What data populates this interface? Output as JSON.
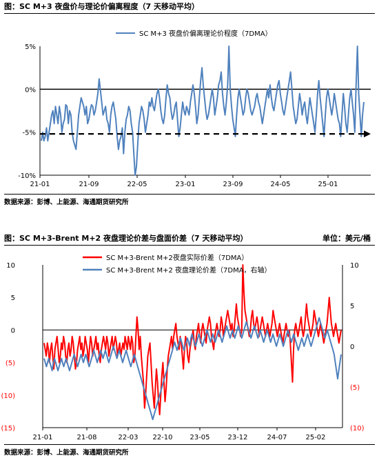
{
  "chart_data": [
    {
      "type": "line",
      "title": "图：SC M+3 夜盘价与理论价偏离程度（7 天移动平均）",
      "source": "数据来源：彭博、上能源、海通期货研究所",
      "legend": [
        "SC M+3 夜盘价偏离理论价程度（7DMA）"
      ],
      "y_ticks": [
        "5%",
        "0%",
        "-5%",
        "-10%"
      ],
      "x_ticks": [
        "21-01",
        "21-09",
        "22-05",
        "23-01",
        "23-09",
        "24-05",
        "25-01"
      ],
      "ylim": [
        -10,
        5
      ],
      "threshold": -5.2,
      "series": [
        {
          "name": "SC M+3 夜盘价偏离理论价程度（7DMA）",
          "color": "#4f81bd",
          "values": [
            -6,
            -5,
            -6,
            -5.5,
            -4.5,
            -6,
            -5,
            -4,
            -3,
            -2.5,
            -4,
            -2,
            -3,
            -4,
            -2,
            -3,
            -5,
            -4,
            -3.5,
            -1.8,
            -2,
            -4,
            -2.5,
            -3,
            -5,
            -6,
            -6.5,
            -7,
            -5,
            -3,
            -2,
            -1,
            -1.5,
            -2,
            -3,
            -2,
            -4,
            -3.5,
            -2.5,
            -1.8,
            -2,
            -3,
            -2.5,
            -1.5,
            -0.5,
            1.2,
            -0.2,
            -1.5,
            -3,
            -2.5,
            -2,
            -3.5,
            -4,
            -5,
            -3,
            -2,
            -1.5,
            -2.5,
            -3.5,
            -5.5,
            -7,
            -6,
            -5.5,
            -4.5,
            -7.5,
            -5,
            -3.5,
            -3,
            -2,
            -2.5,
            -4,
            -5,
            -7.5,
            -10,
            -9,
            -6.5,
            -4,
            -3,
            -2,
            -2.5,
            -3.5,
            -5,
            -4,
            -3,
            -1.5,
            -2,
            -1,
            -2,
            -2.5,
            -1.5,
            -0.5,
            0,
            -1,
            -2.5,
            -3.5,
            -4,
            -3,
            -1,
            0.5,
            -0.5,
            -1,
            -2.5,
            -3.5,
            -3,
            -2,
            -1.5,
            -3.5,
            -5.5,
            -4.5,
            -3,
            -1.5,
            -2.5,
            -3,
            -2,
            -2.5,
            -3,
            -1.5,
            -0.5,
            0.5,
            -0.5,
            -2,
            -4,
            -3,
            -1,
            1,
            2.5,
            0.5,
            -1,
            -2.5,
            -3.5,
            -3,
            -2,
            -1,
            0,
            -1,
            -3,
            -2,
            -1,
            0.5,
            1,
            2,
            -0.5,
            -2,
            -3,
            -1.5,
            0.5,
            5,
            0,
            -2,
            -3.5,
            -4.5,
            -5.5,
            -3,
            -1,
            0,
            -1,
            -2,
            -3,
            -2.5,
            -1,
            0,
            -0.5,
            -1.5,
            -2.5,
            -3,
            -2.5,
            -2,
            -1,
            -0.5,
            -1.5,
            -2,
            -3,
            -4,
            -3,
            -2,
            -1,
            0,
            -1,
            0.5,
            -1,
            -2,
            -2.5,
            -1.5,
            -0.5,
            0.5,
            1,
            -0.5,
            -1.5,
            -2.5,
            -3,
            -2,
            -1,
            0,
            1,
            2,
            0,
            -2,
            -3,
            -4,
            -3.5,
            -2,
            -0.5,
            -1.5,
            -3,
            -2,
            -1.5,
            -3,
            -4,
            -2.5,
            -1,
            -2,
            -3,
            -4,
            -5,
            -3,
            -0.5,
            1,
            -1,
            -2.5,
            -4,
            -5.5,
            -3,
            -1,
            0,
            -1,
            -2,
            -3,
            -2,
            -0.5,
            -1.5,
            -2.5,
            -3.5,
            -4,
            -5.5,
            -3,
            -0.5,
            -2,
            -4,
            -5,
            -3,
            -1,
            0,
            -1.5,
            -3,
            -5,
            0.5,
            5,
            -0.5,
            -3,
            -5.5,
            -3,
            -1.5
          ]
        }
      ]
    },
    {
      "type": "line",
      "title": "图：SC M+3-Brent M+2 夜盘理论价差与盘面价差（7 天移动平均）",
      "unit": "单位：美元/桶",
      "source": "数据来源：彭博、上能源、海通期货研究所",
      "left_ticks": [
        "10",
        "5",
        "0",
        "(5)",
        "(10)",
        "(15)"
      ],
      "right_ticks": [
        "10",
        "5",
        "0",
        "(5)",
        "(10)"
      ],
      "x_ticks": [
        "21-01",
        "21-08",
        "22-03",
        "22-10",
        "23-05",
        "23-12",
        "24-07",
        "25-02"
      ],
      "ylim_left": [
        -15,
        10
      ],
      "ylim_right": [
        -10,
        10
      ],
      "series": [
        {
          "name": "SC M+3-Brent M+2夜盘实际价差（7DMA）",
          "axis": "left",
          "color": "#ff0000",
          "values": [
            -2,
            -3,
            -4,
            -2,
            -3,
            -5,
            -3,
            -2,
            -4,
            -6,
            -3,
            -2,
            -1,
            -3,
            -5,
            -4,
            -2,
            -3,
            -1,
            -2,
            -4,
            -5,
            -3,
            -2,
            -4,
            -3,
            -1,
            -2,
            -4,
            -6,
            -5,
            -3,
            -2,
            -1,
            -3,
            -2,
            -4,
            -3,
            -1,
            -2,
            -3,
            -5,
            -3,
            -1,
            -2,
            -4,
            -3,
            -2,
            -1,
            -3,
            -2,
            -4,
            -5,
            -3,
            -2,
            -1,
            -2,
            -3,
            -1,
            -2,
            -4,
            -3,
            -2,
            -1,
            -3,
            -2,
            -1,
            -2,
            -4,
            -3,
            -2,
            -4,
            -3,
            -2,
            -3,
            -1,
            -2,
            -3,
            -1,
            -2,
            -3,
            -1,
            -2,
            -5,
            -4,
            -1,
            2,
            0,
            -3,
            -1,
            -4,
            -6,
            -8,
            -12,
            -10,
            -7,
            -4,
            -3,
            -2,
            -5,
            -8,
            -10,
            -12,
            -9,
            -6,
            -8,
            -11,
            -13,
            -10,
            -7,
            -5,
            -8,
            -11,
            -9,
            -6,
            -4,
            -3,
            -2,
            -1,
            -3,
            -1,
            0,
            1,
            -1,
            -2,
            -3,
            -1,
            -2,
            -4,
            -6,
            -3,
            -1,
            -2,
            -4,
            -5,
            -3,
            -2,
            -1,
            0,
            -2,
            -3,
            -1,
            0,
            1,
            -1,
            -2,
            0,
            1,
            0,
            -1,
            -2,
            0,
            1,
            2,
            1,
            -1,
            -2,
            -3,
            -1,
            0,
            1,
            0,
            -1,
            0,
            2,
            1,
            -1,
            0,
            1,
            2,
            3,
            2,
            1,
            0,
            1,
            -1,
            0,
            2,
            4,
            2,
            1,
            0,
            -1,
            0,
            10,
            6,
            3,
            2,
            1,
            0,
            -1,
            0,
            2,
            3,
            1,
            0,
            1,
            2,
            1,
            -1,
            0,
            1,
            2,
            1,
            0,
            -1,
            0,
            1,
            0,
            -1,
            0,
            1,
            3,
            2,
            1,
            0,
            -1,
            0,
            1,
            0,
            -1,
            -2,
            -1,
            0,
            1,
            0,
            -1,
            0,
            -2,
            -5,
            -8,
            -3,
            0,
            1,
            0,
            -1,
            0,
            1,
            2,
            0,
            -1,
            0,
            2,
            4,
            2,
            1,
            0,
            -1,
            0,
            1,
            3,
            2,
            1,
            0,
            -1,
            0,
            1,
            0,
            -1,
            -2,
            -1,
            0,
            1,
            3,
            5,
            3,
            1,
            0,
            -1,
            0,
            1,
            0,
            -1,
            -2,
            -1,
            0
          ]
        },
        {
          "name": "SC M+3-Brent M+2 夜盘理论价差（7DMA，右轴）",
          "axis": "right",
          "color": "#4f81bd",
          "values": [
            -1.5,
            -2,
            -2.5,
            -2,
            -1.5,
            -2,
            -2.5,
            -3,
            -2,
            -1.5,
            -2,
            -2.5,
            -3,
            -2.5,
            -2,
            -1.5,
            -2,
            -2.5,
            -2,
            -1.5,
            -2,
            -2.5,
            -3,
            -2.5,
            -2,
            -1.5,
            -1,
            -1.5,
            -2,
            -2.5,
            -2,
            -1.5,
            -1,
            -1.5,
            -2,
            -1.5,
            -1,
            -1.5,
            -2,
            -2.5,
            -2,
            -1.5,
            -1,
            -0.5,
            -1,
            -1.5,
            -2,
            -1.5,
            -1,
            -0.5,
            -1,
            -1.5,
            -1,
            -0.5,
            -1,
            -1.5,
            -2,
            -1.5,
            -1,
            -0.5,
            0,
            -0.5,
            -1,
            -1.5,
            -1,
            -0.5,
            -1,
            -1.5,
            -2,
            -1.5,
            -1,
            -0.5,
            -1,
            -1.5,
            -2,
            -2.5,
            -2,
            -1.5,
            -1,
            -1.5,
            -2,
            -2.5,
            -3,
            -3.5,
            -4,
            -4.5,
            -5,
            -5.5,
            -6,
            -6.5,
            -7,
            -7.5,
            -8,
            -8.5,
            -9,
            -8.5,
            -8,
            -7.5,
            -7,
            -6.5,
            -6,
            -5.5,
            -5,
            -4.5,
            -4,
            -3.5,
            -3,
            -2.5,
            -2,
            -1.5,
            -1,
            -0.5,
            0,
            0.5,
            0,
            -0.5,
            0,
            0.5,
            1,
            0.5,
            0,
            -0.5,
            0,
            0.5,
            1,
            0.5,
            0,
            1,
            1.5,
            1,
            0.5,
            0,
            0.5,
            1,
            1.5,
            1,
            0.5,
            0,
            0.5,
            1,
            1.5,
            2,
            1.5,
            1,
            0.5,
            1,
            1.5,
            1,
            0.5,
            1,
            1.5,
            2,
            1.5,
            1,
            0.5,
            1,
            1.5,
            2,
            2.5,
            2,
            1.5,
            1,
            1.5,
            2,
            1.5,
            1,
            1.5,
            2,
            2.5,
            2,
            1.5,
            1,
            1.5,
            2,
            2.5,
            3,
            2.5,
            2,
            1.5,
            1,
            1.5,
            2,
            2.5,
            2,
            1.5,
            1,
            1.5,
            2,
            1.5,
            1,
            0.5,
            1,
            1.5,
            2,
            1.5,
            1,
            0.5,
            1,
            1.5,
            1,
            0.5,
            0,
            0.5,
            1,
            1.5,
            1,
            0.5,
            0,
            0.5,
            1,
            1.5,
            2,
            1.5,
            1,
            0.5,
            1,
            1.5,
            1,
            0.5,
            0,
            -0.5,
            0,
            0.5,
            1,
            0.5,
            0,
            0.5,
            1,
            1.5,
            1,
            0.5,
            0,
            0.5,
            1,
            1.5,
            2,
            2.5,
            3,
            3.5,
            3,
            2.5,
            2,
            1.5,
            1,
            1.5,
            2,
            1.5,
            1,
            0.5,
            0,
            -0.5,
            -1,
            -2,
            -3,
            -4,
            -3,
            -2,
            -1
          ]
        }
      ]
    }
  ]
}
